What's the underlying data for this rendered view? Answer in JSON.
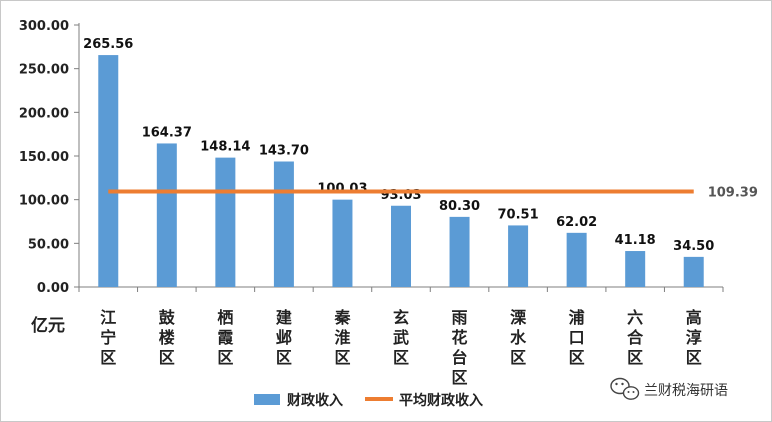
{
  "chart_data": {
    "type": "bar",
    "categories": [
      "江宁区",
      "鼓楼区",
      "栖霞区",
      "建邺区",
      "秦淮区",
      "玄武区",
      "雨花台区",
      "溧水区",
      "浦口区",
      "六合区",
      "高淳区"
    ],
    "series": [
      {
        "name": "财政收入",
        "type": "bar",
        "values": [
          265.56,
          164.37,
          148.14,
          143.7,
          100.03,
          93.03,
          80.3,
          70.51,
          62.02,
          41.18,
          34.5
        ],
        "labels": [
          "265.56",
          "164.37",
          "148.14",
          "143.70",
          "100.03",
          "93.03",
          "80.30",
          "70.51",
          "62.02",
          "41.18",
          "34.50"
        ]
      },
      {
        "name": "平均财政收入",
        "type": "line",
        "value": 109.39,
        "label": "109.39"
      }
    ],
    "y_ticks": [
      "0.00",
      "50.00",
      "100.00",
      "150.00",
      "200.00",
      "250.00",
      "300.00"
    ],
    "ylim": [
      0,
      300
    ],
    "ylabel": "亿元",
    "legend_position": "bottom",
    "colors": {
      "bar": "#5b9bd5",
      "line": "#ed7d31"
    }
  },
  "watermark": "兰财税海研语"
}
